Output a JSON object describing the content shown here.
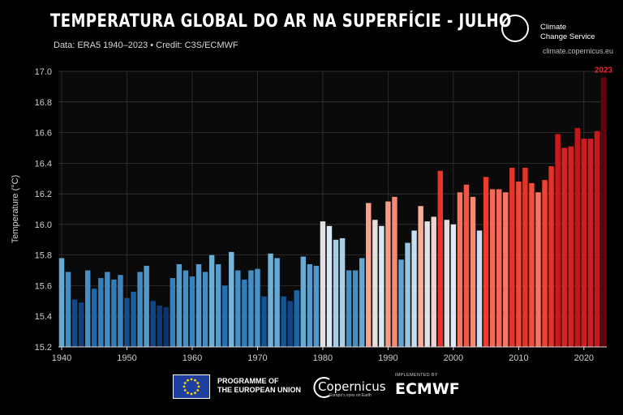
{
  "header": {
    "title": "TEMPERATURA GLOBAL DO AR NA SUPERFÍCIE - JULHO",
    "subtitle": "Data: ERA5 1940–2023 • Credit: C3S/ECMWF"
  },
  "brand": {
    "name": "Climate\nChange Service",
    "url": "climate.copernicus.eu"
  },
  "footer": {
    "eu_text": "PROGRAMME OF\nTHE EUROPEAN UNION",
    "copernicus_text": "Copernicus",
    "copernicus_tagline": "Europe's eyes on Earth",
    "implemented_by": "IMPLEMENTED BY",
    "ecmwf_text": "ECMWF"
  },
  "colors": {
    "cold": "#08306b",
    "warm": "#67000d",
    "highlight": "#e8242a"
  },
  "chart_data": {
    "type": "bar",
    "title": "TEMPERATURA GLOBAL DO AR NA SUPERFÍCIE - JULHO",
    "xlabel": "",
    "ylabel": "Temperature (°C)",
    "ylim": [
      15.2,
      17.0
    ],
    "yticks": [
      "15.2",
      "15.4",
      "15.6",
      "15.8",
      "16.0",
      "16.2",
      "16.4",
      "16.6",
      "16.8",
      "17.0"
    ],
    "xticks": [
      "1940",
      "1950",
      "1960",
      "1970",
      "1980",
      "1990",
      "2000",
      "2010",
      "2020"
    ],
    "highlight_label": "2023",
    "color_scale": "diverging blue-white-red",
    "grid": true,
    "x": [
      1940,
      1941,
      1942,
      1943,
      1944,
      1945,
      1946,
      1947,
      1948,
      1949,
      1950,
      1951,
      1952,
      1953,
      1954,
      1955,
      1956,
      1957,
      1958,
      1959,
      1960,
      1961,
      1962,
      1963,
      1964,
      1965,
      1966,
      1967,
      1968,
      1969,
      1970,
      1971,
      1972,
      1973,
      1974,
      1975,
      1976,
      1977,
      1978,
      1979,
      1980,
      1981,
      1982,
      1983,
      1984,
      1985,
      1986,
      1987,
      1988,
      1989,
      1990,
      1991,
      1992,
      1993,
      1994,
      1995,
      1996,
      1997,
      1998,
      1999,
      2000,
      2001,
      2002,
      2003,
      2004,
      2005,
      2006,
      2007,
      2008,
      2009,
      2010,
      2011,
      2012,
      2013,
      2014,
      2015,
      2016,
      2017,
      2018,
      2019,
      2020,
      2021,
      2022,
      2023
    ],
    "values": [
      15.78,
      15.69,
      15.51,
      15.49,
      15.7,
      15.58,
      15.65,
      15.69,
      15.64,
      15.67,
      15.52,
      15.56,
      15.69,
      15.73,
      15.5,
      15.47,
      15.46,
      15.65,
      15.74,
      15.7,
      15.66,
      15.74,
      15.69,
      15.8,
      15.74,
      15.6,
      15.82,
      15.7,
      15.64,
      15.7,
      15.71,
      15.53,
      15.81,
      15.78,
      15.53,
      15.5,
      15.57,
      15.79,
      15.74,
      15.73,
      16.02,
      15.99,
      15.9,
      15.91,
      15.7,
      15.7,
      15.78,
      16.14,
      16.03,
      15.99,
      16.15,
      16.18,
      15.77,
      15.88,
      15.96,
      16.12,
      16.02,
      16.05,
      16.35,
      16.03,
      16.0,
      16.21,
      16.26,
      16.18,
      15.96,
      16.31,
      16.23,
      16.23,
      16.21,
      16.37,
      16.28,
      16.37,
      16.27,
      16.21,
      16.29,
      16.38,
      16.59,
      16.5,
      16.51,
      16.63,
      16.56,
      16.56,
      16.61,
      16.96
    ]
  }
}
